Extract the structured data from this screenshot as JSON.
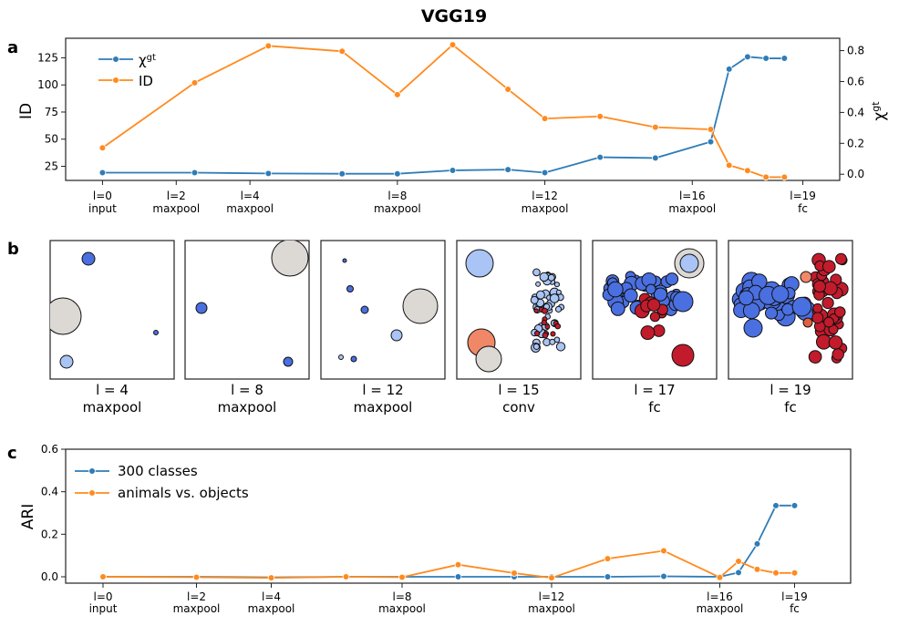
{
  "title": "VGG19",
  "colors": {
    "blue": "#2f7cb7",
    "orange": "#ff8a1e",
    "axis": "#222222"
  },
  "chart_data": [
    {
      "panel": "a",
      "type": "line",
      "dual_axis": true,
      "ylabel_left": "ID",
      "ylabel_right": "χ",
      "ylabel_right_sup": "gt",
      "ylim_left": [
        12,
        143
      ],
      "yticks_left": [
        25,
        50,
        75,
        100,
        125
      ],
      "ylim_right": [
        -0.04,
        0.88
      ],
      "yticks_right": [
        0.0,
        0.2,
        0.4,
        0.6,
        0.8
      ],
      "x": [
        0,
        2,
        4,
        6,
        8,
        10,
        12,
        14,
        16,
        17,
        18,
        19
      ],
      "xlim": [
        -1,
        20
      ],
      "xticks": [
        {
          "x": 0,
          "label": "l=0",
          "sub": "input"
        },
        {
          "x": 2,
          "label": "l=2",
          "sub": "maxpool"
        },
        {
          "x": 4,
          "label": "l=4",
          "sub": "maxpool"
        },
        {
          "x": 8,
          "label": "l=8",
          "sub": "maxpool"
        },
        {
          "x": 12,
          "label": "l=12",
          "sub": "maxpool"
        },
        {
          "x": 16,
          "label": "l=16",
          "sub": "maxpool"
        },
        {
          "x": 19,
          "label": "l=19",
          "sub": "fc"
        }
      ],
      "series": [
        {
          "name": "χ",
          "name_sup": "gt",
          "axis": "right",
          "color": "#2f7cb7",
          "x": [
            0,
            2.5,
            4.5,
            6.5,
            8,
            9.5,
            11,
            12,
            13.5,
            15,
            16.5,
            17,
            17.5,
            18,
            18.5
          ],
          "values": [
            0.01,
            0.01,
            0.005,
            0.003,
            0.003,
            0.025,
            0.03,
            0.01,
            0.11,
            0.105,
            0.21,
            0.68,
            0.76,
            0.75,
            0.75
          ]
        },
        {
          "name": "ID",
          "axis": "left",
          "color": "#ff8a1e",
          "x": [
            0,
            2.5,
            4.5,
            6.5,
            8,
            9.5,
            11,
            12,
            13.5,
            15,
            16.5,
            17,
            17.5,
            18,
            18.5
          ],
          "values": [
            42,
            102,
            136,
            131,
            91,
            137,
            96,
            69,
            71,
            61,
            59,
            26,
            21,
            15,
            15
          ]
        }
      ]
    },
    {
      "panel": "c",
      "type": "line",
      "ylabel": "ARI",
      "ylim": [
        -0.03,
        0.6
      ],
      "yticks": [
        0.0,
        0.2,
        0.4,
        0.6
      ],
      "x": [
        0,
        2.5,
        4.5,
        6.5,
        8,
        9.5,
        11,
        12,
        13.5,
        15,
        16.5,
        17,
        17.5,
        18,
        18.5
      ],
      "xlim": [
        -1,
        20
      ],
      "xticks": [
        {
          "x": 0,
          "label": "l=0",
          "sub": "input"
        },
        {
          "x": 2.5,
          "label": "l=2",
          "sub": "maxpool"
        },
        {
          "x": 4.5,
          "label": "l=4",
          "sub": "maxpool"
        },
        {
          "x": 8,
          "label": "l=8",
          "sub": "maxpool"
        },
        {
          "x": 12,
          "label": "l=12",
          "sub": "maxpool"
        },
        {
          "x": 16.5,
          "label": "l=16",
          "sub": "maxpool"
        },
        {
          "x": 18.5,
          "label": "l=19",
          "sub": "fc"
        }
      ],
      "series": [
        {
          "name": "300 classes",
          "color": "#2f7cb7",
          "values": [
            0.0,
            0.0,
            -0.003,
            0.0,
            0.0,
            0.0,
            0.0,
            0.0,
            0.0,
            0.002,
            0.0,
            0.02,
            0.155,
            0.335,
            0.335
          ]
        },
        {
          "name": "animals vs. objects",
          "color": "#ff8a1e",
          "values": [
            0.0,
            -0.002,
            -0.005,
            0.0,
            -0.002,
            0.057,
            0.017,
            -0.005,
            0.085,
            0.122,
            -0.003,
            0.073,
            0.035,
            0.018,
            0.018
          ]
        }
      ]
    }
  ],
  "panel_b": {
    "label": "b",
    "tiles": [
      {
        "layer": "l = 4",
        "type": "maxpool"
      },
      {
        "layer": "l = 8",
        "type": "maxpool"
      },
      {
        "layer": "l = 12",
        "type": "maxpool"
      },
      {
        "layer": "l = 15",
        "type": "conv"
      },
      {
        "layer": "l = 17",
        "type": "fc"
      },
      {
        "layer": "l = 19",
        "type": "fc"
      }
    ]
  },
  "panel_labels": {
    "a": "a",
    "c": "c"
  }
}
